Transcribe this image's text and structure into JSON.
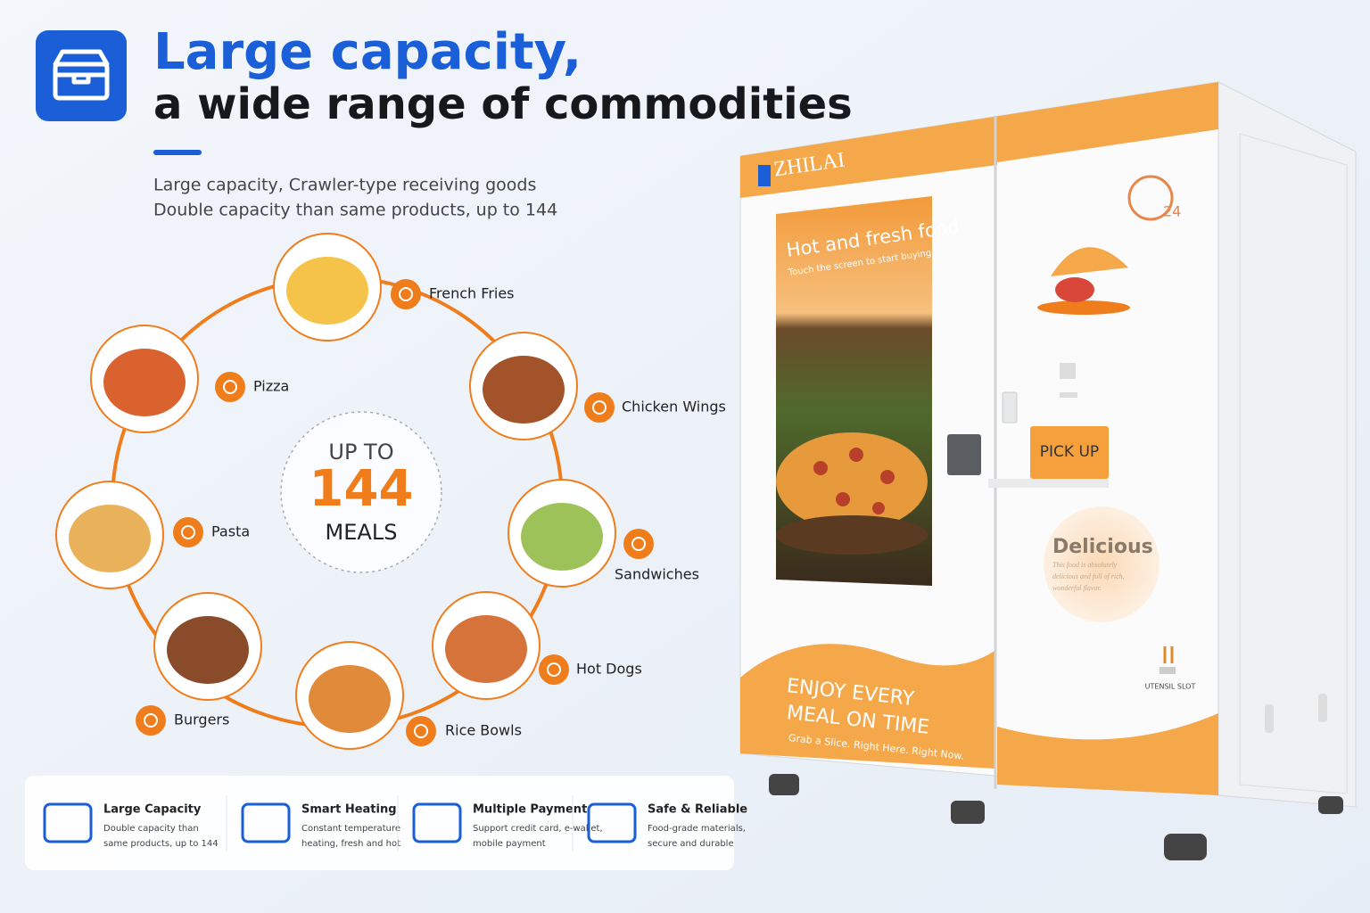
{
  "header": {
    "title_line1": "Large capacity,",
    "title_line2": "a wide range of commodities",
    "subtitle_lines": [
      "Large capacity, Crawler-type receiving goods",
      "Double capacity than same products, up to 144"
    ]
  },
  "capacity": {
    "prefix": "UP TO",
    "number": "144",
    "suffix": "MEALS"
  },
  "foods": [
    "French Fries",
    "Pizza",
    "Chicken Wings",
    "Pasta",
    "Sandwiches",
    "Hot Dogs",
    "Burgers",
    "Rice Bowls"
  ],
  "features": [
    {
      "title": "Large Capacity",
      "lines": [
        "Double capacity than",
        "same products, up to 144"
      ]
    },
    {
      "title": "Smart Heating",
      "lines": [
        "Constant temperature",
        "heating, fresh and hot"
      ]
    },
    {
      "title": "Multiple Payment",
      "lines": [
        "Support credit card, e-wallet,",
        "mobile payment"
      ]
    },
    {
      "title": "Safe & Reliable",
      "lines": [
        "Food-grade materials,",
        "secure and durable"
      ]
    }
  ],
  "machine": {
    "brand": "ZHILAI",
    "screen_title": "Hot and fresh food",
    "screen_subtitle": "Touch the screen to start buying",
    "hours": "24",
    "pickup": "PICK UP",
    "badge_title": "Delicious",
    "badge_lines": [
      "This food is absolutely",
      "delicious and full of rich,",
      "wonderful flavor."
    ],
    "slogan_lines": [
      "ENJOY  EVERY",
      "MEAL ON TIME"
    ],
    "tagline": "Grab a Slice. Right Here. Right Now.",
    "utensil": "UTENSIL SLOT"
  }
}
